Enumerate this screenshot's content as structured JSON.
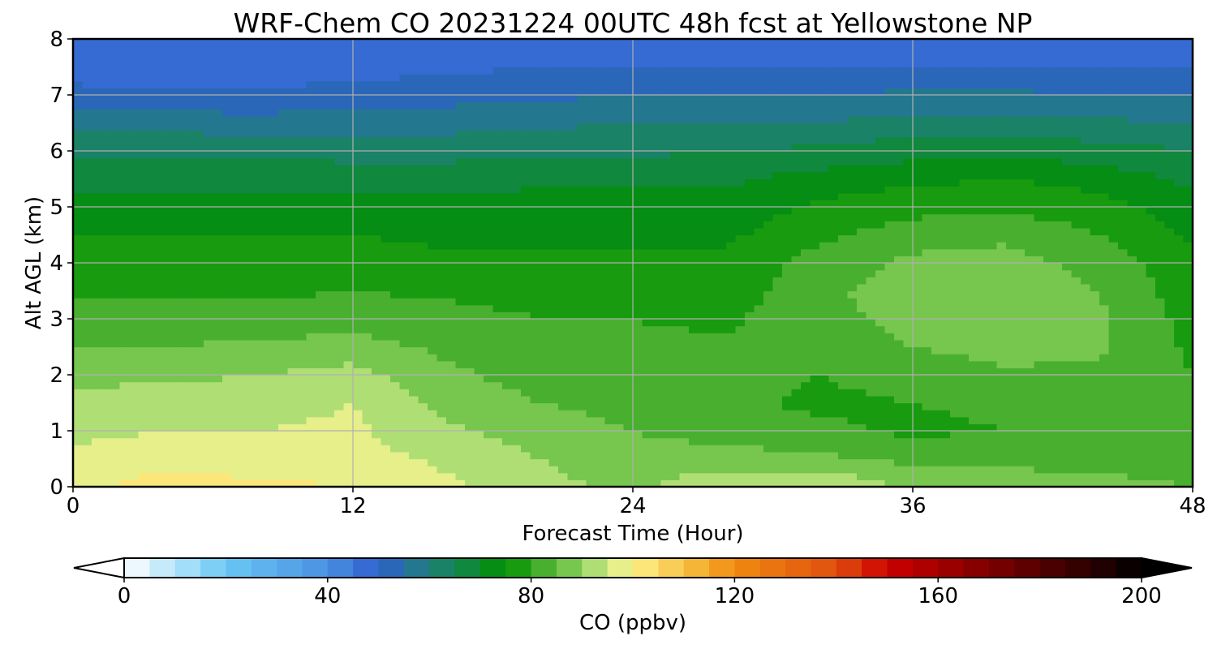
{
  "chart_data": {
    "type": "heatmap",
    "title": "WRF-Chem CO  20231224 00UTC 48h fcst at Yellowstone NP",
    "xlabel": "Forecast Time (Hour)",
    "ylabel": "Alt AGL (km)",
    "xlim": [
      0,
      48
    ],
    "ylim": [
      0,
      8
    ],
    "xticks": [
      0,
      12,
      24,
      36,
      48
    ],
    "yticks": [
      0,
      1,
      2,
      3,
      4,
      5,
      6,
      7,
      8
    ],
    "grid": true,
    "x": [
      0,
      4,
      8,
      12,
      16,
      20,
      24,
      28,
      32,
      36,
      40,
      44,
      48
    ],
    "y": [
      0,
      0.5,
      1,
      1.5,
      2,
      2.5,
      3,
      3.5,
      4,
      4.5,
      5,
      5.5,
      6,
      6.5,
      7,
      7.5,
      8
    ],
    "z": [
      [
        98,
        103,
        101,
        100,
        96,
        92,
        88,
        95,
        96,
        88,
        87,
        86,
        85
      ],
      [
        96,
        98,
        97,
        97,
        94,
        90,
        87,
        87,
        86,
        84,
        84,
        84,
        83
      ],
      [
        94,
        95,
        95,
        96,
        91,
        88,
        85,
        83,
        81,
        79,
        80,
        80,
        82
      ],
      [
        92,
        93,
        93,
        95,
        88,
        85,
        83,
        81,
        79,
        80,
        81,
        81,
        81
      ],
      [
        88,
        89,
        90,
        92,
        86,
        83,
        82,
        82,
        80,
        82,
        84,
        84,
        80
      ],
      [
        85,
        85,
        86,
        87,
        84,
        82,
        81,
        81,
        83,
        85,
        87,
        86,
        79
      ],
      [
        82,
        82,
        82,
        83,
        82,
        80,
        80,
        79,
        84,
        86,
        90,
        86,
        78
      ],
      [
        79,
        79,
        79,
        80,
        79,
        78,
        78,
        77,
        84,
        87,
        90,
        85,
        77
      ],
      [
        77,
        77,
        77,
        77,
        76,
        76,
        76,
        76,
        82,
        86,
        87,
        83,
        76
      ],
      [
        75,
        75,
        75,
        75,
        74,
        74,
        74,
        74,
        79,
        83,
        84,
        80,
        74
      ],
      [
        72,
        72,
        72,
        72,
        72,
        72,
        72,
        72,
        76,
        78,
        79,
        77,
        72
      ],
      [
        68,
        68,
        68,
        68,
        68,
        69,
        69,
        69,
        72,
        74,
        75,
        73,
        69
      ],
      [
        64,
        64,
        64,
        63,
        63,
        64,
        64,
        65,
        66,
        68,
        69,
        67,
        65
      ],
      [
        58,
        58,
        57,
        58,
        58,
        59,
        60,
        60,
        60,
        62,
        62,
        61,
        60
      ],
      [
        52,
        51,
        51,
        52,
        53,
        54,
        55,
        55,
        55,
        56,
        56,
        55,
        55
      ],
      [
        47,
        46,
        47,
        48,
        49,
        50,
        50,
        50,
        50,
        50,
        50,
        50,
        50
      ],
      [
        45,
        45,
        45,
        46,
        47,
        46,
        46,
        45,
        45,
        45,
        45,
        45,
        45
      ]
    ],
    "colorbar": {
      "label": "CO  (ppbv)",
      "min": 0,
      "max": 200,
      "step": 5,
      "ticks": [
        0,
        40,
        80,
        120,
        160,
        200
      ],
      "extend": "both",
      "orientation": "horizontal",
      "stops": [
        [
          0,
          "#ffffff"
        ],
        [
          20,
          "#6ac8f5"
        ],
        [
          40,
          "#4a90e2"
        ],
        [
          50,
          "#2e5fcc"
        ],
        [
          60,
          "#1f7f7a"
        ],
        [
          75,
          "#009000"
        ],
        [
          88,
          "#7cc850"
        ],
        [
          95,
          "#ccec88"
        ],
        [
          100,
          "#fff28a"
        ],
        [
          112,
          "#f5b83a"
        ],
        [
          120,
          "#f08a10"
        ],
        [
          140,
          "#e05010"
        ],
        [
          150,
          "#cc0000"
        ],
        [
          175,
          "#6a0000"
        ],
        [
          200,
          "#000000"
        ]
      ]
    }
  }
}
